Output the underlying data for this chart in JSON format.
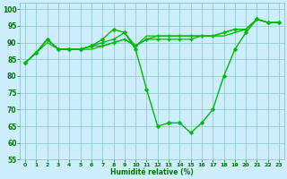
{
  "xlabel": "Humidité relative (%)",
  "background_color": "#cceeff",
  "grid_color": "#99cccc",
  "line_color": "#00bb00",
  "marker_color": "#00bb00",
  "xlim": [
    -0.5,
    23.5
  ],
  "ylim": [
    55,
    102
  ],
  "yticks": [
    55,
    60,
    65,
    70,
    75,
    80,
    85,
    90,
    95,
    100
  ],
  "xticks": [
    0,
    1,
    2,
    3,
    4,
    5,
    6,
    7,
    8,
    9,
    10,
    11,
    12,
    13,
    14,
    15,
    16,
    17,
    18,
    19,
    20,
    21,
    22,
    23
  ],
  "series": [
    [
      84,
      87,
      90,
      88,
      88,
      88,
      88,
      89,
      90,
      91,
      89,
      92,
      92,
      92,
      92,
      92,
      92,
      92,
      92,
      93,
      94,
      97,
      96,
      96
    ],
    [
      84,
      87,
      91,
      88,
      88,
      88,
      89,
      91,
      94,
      93,
      88,
      76,
      65,
      66,
      66,
      63,
      66,
      70,
      80,
      88,
      93,
      97,
      96,
      96
    ],
    [
      84,
      87,
      91,
      88,
      88,
      88,
      89,
      89,
      90,
      91,
      89,
      91,
      91,
      91,
      91,
      91,
      92,
      92,
      93,
      94,
      94,
      97,
      96,
      96
    ],
    [
      84,
      87,
      91,
      88,
      88,
      88,
      89,
      90,
      91,
      93,
      89,
      91,
      92,
      92,
      92,
      92,
      92,
      92,
      93,
      94,
      94,
      97,
      96,
      96
    ]
  ],
  "series_styles": [
    {
      "marker": null,
      "ms": 0,
      "lw": 0.9
    },
    {
      "marker": "D",
      "ms": 1.8,
      "lw": 1.0
    },
    {
      "marker": "+",
      "ms": 3.0,
      "lw": 0.9
    },
    {
      "marker": "+",
      "ms": 3.0,
      "lw": 0.9
    }
  ]
}
